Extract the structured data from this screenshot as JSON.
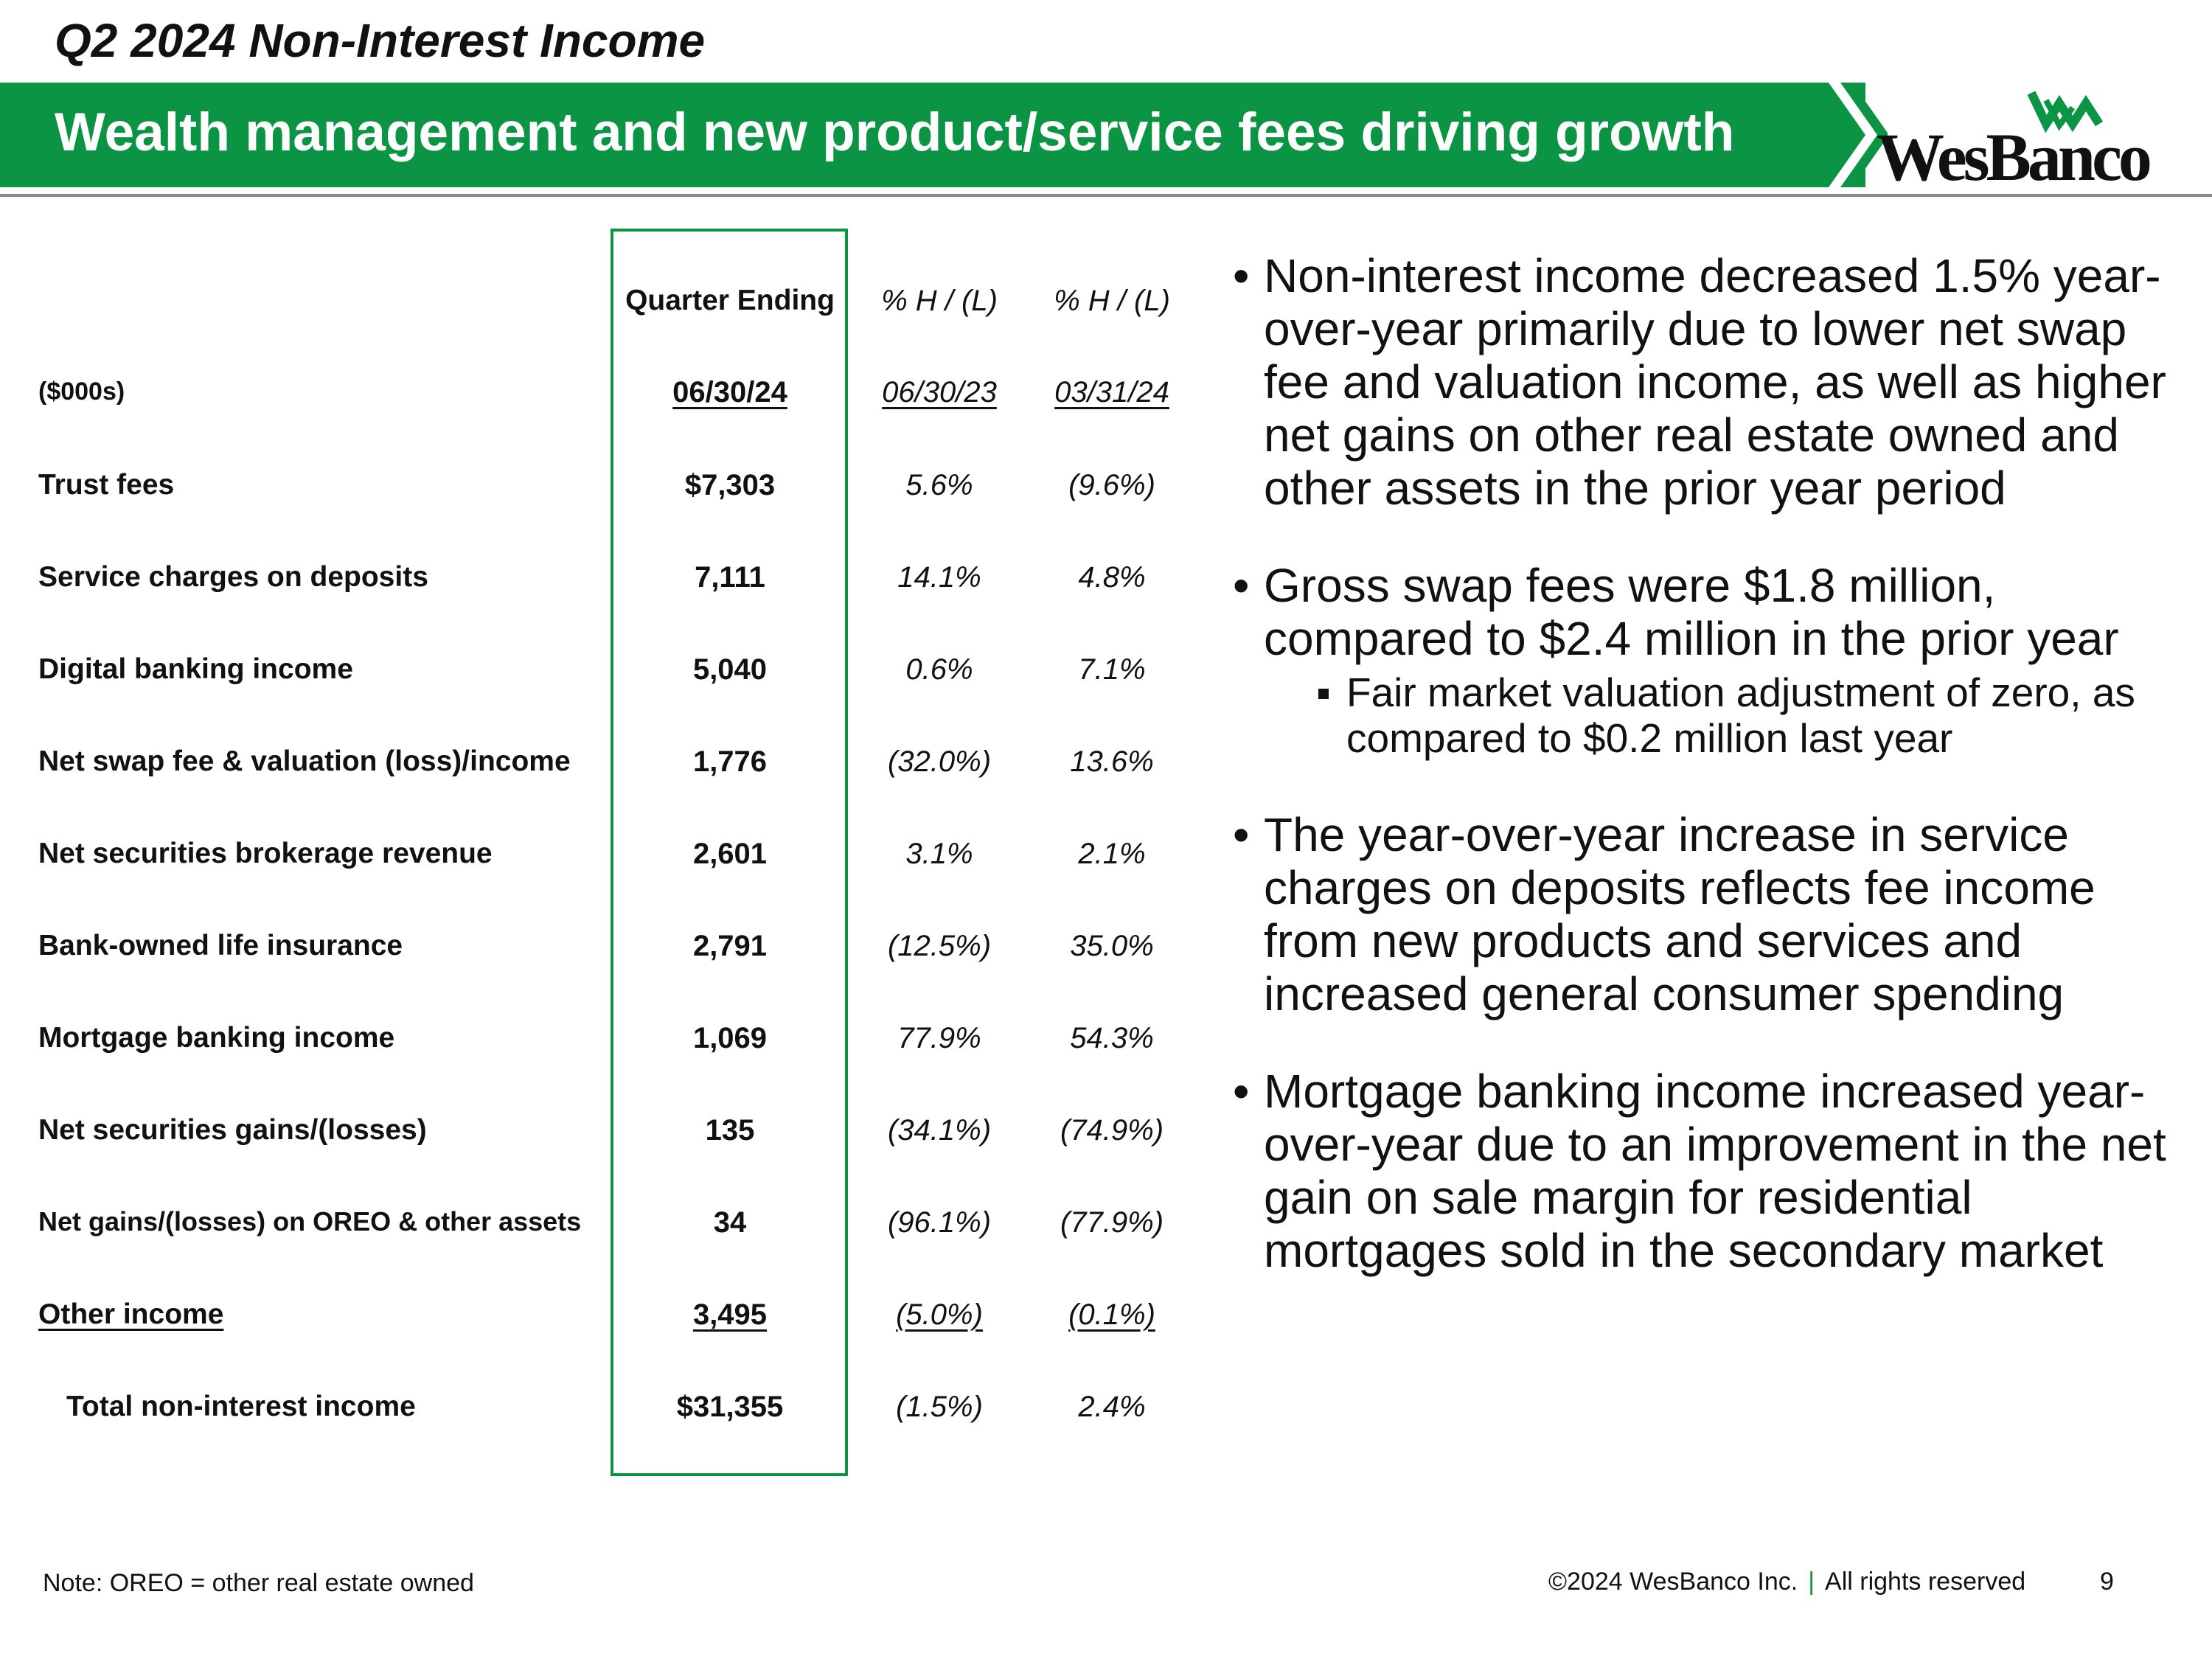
{
  "header": {
    "title": "Q2 2024 Non-Interest Income",
    "banner": "Wealth management and new product/service fees driving growth",
    "logo_text": "WesBanco",
    "brand_color": "#0b9444"
  },
  "table": {
    "col_headers": [
      "Quarter Ending",
      "% H / (L)",
      "% H / (L)"
    ],
    "unit_label": "($000s)",
    "dates": [
      "06/30/24",
      "06/30/23",
      "03/31/24"
    ],
    "rows": [
      {
        "label": "Trust fees",
        "value": "$7,303",
        "vs_prior_year": "5.6%",
        "vs_prior_quarter": "(9.6%)"
      },
      {
        "label": "Service charges on deposits",
        "value": "7,111",
        "vs_prior_year": "14.1%",
        "vs_prior_quarter": "4.8%"
      },
      {
        "label": "Digital banking income",
        "value": "5,040",
        "vs_prior_year": "0.6%",
        "vs_prior_quarter": "7.1%"
      },
      {
        "label": "Net swap fee & valuation (loss)/income",
        "value": "1,776",
        "vs_prior_year": "(32.0%)",
        "vs_prior_quarter": "13.6%"
      },
      {
        "label": "Net securities brokerage revenue",
        "value": "2,601",
        "vs_prior_year": "3.1%",
        "vs_prior_quarter": "2.1%"
      },
      {
        "label": "Bank-owned life insurance",
        "value": "2,791",
        "vs_prior_year": "(12.5%)",
        "vs_prior_quarter": "35.0%"
      },
      {
        "label": "Mortgage banking income",
        "value": "1,069",
        "vs_prior_year": "77.9%",
        "vs_prior_quarter": "54.3%"
      },
      {
        "label": "Net securities gains/(losses)",
        "value": "135",
        "vs_prior_year": "(34.1%)",
        "vs_prior_quarter": "(74.9%)"
      },
      {
        "label": "Net gains/(losses) on OREO & other assets",
        "value": "34",
        "vs_prior_year": "(96.1%)",
        "vs_prior_quarter": "(77.9%)"
      },
      {
        "label": "Other income",
        "value": "3,495",
        "vs_prior_year": "(5.0%)",
        "vs_prior_quarter": "(0.1%)"
      },
      {
        "label": "Total non-interest income",
        "value": "$31,355",
        "vs_prior_year": "(1.5%)",
        "vs_prior_quarter": "2.4%"
      }
    ]
  },
  "bullets": {
    "b1": "Non-interest income decreased 1.5% year-over-year primarily due to lower net swap fee and valuation income, as well as higher net gains on other real estate owned and other assets in the prior year period",
    "b2": "Gross swap fees were $1.8 million, compared to $2.4 million in the prior year",
    "b2_sub": "Fair market valuation adjustment of zero, as compared to $0.2 million last year",
    "b3": "The year-over-year increase in service charges on deposits reflects fee income from new products and services and increased general consumer spending",
    "b4": "Mortgage banking income increased year-over-year due to an improvement in the net gain on sale margin for residential mortgages sold in the secondary market"
  },
  "footer": {
    "note": "Note: OREO = other real estate owned",
    "copyright": "©2024 WesBanco Inc.",
    "separator": "|",
    "rights": "All rights reserved",
    "page": "9"
  }
}
